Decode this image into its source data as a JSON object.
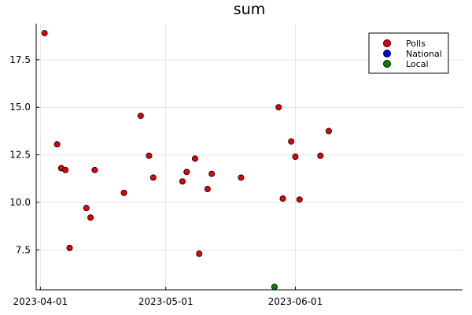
{
  "chart_data": {
    "type": "scatter",
    "title": "sum",
    "xlabel": "",
    "ylabel": "",
    "x_axis": {
      "type": "date",
      "range": [
        "2023-03-31",
        "2023-07-11"
      ],
      "ticks": [
        {
          "date": "2023-04-01",
          "label": "2023-04-01"
        },
        {
          "date": "2023-05-01",
          "label": "2023-05-01"
        },
        {
          "date": "2023-06-01",
          "label": "2023-06-01"
        }
      ]
    },
    "y_axis": {
      "range": [
        5.4,
        19.4
      ],
      "ticks": [
        {
          "value": 7.5,
          "label": "7.5"
        },
        {
          "value": 10.0,
          "label": "10.0"
        },
        {
          "value": 12.5,
          "label": "12.5"
        },
        {
          "value": 15.0,
          "label": "15.0"
        },
        {
          "value": 17.5,
          "label": "17.5"
        }
      ]
    },
    "grid": true,
    "legend_position": "top-right",
    "series": [
      {
        "name": "Polls",
        "color": "#e0000a",
        "points": [
          {
            "x": "2023-04-02",
            "y": 18.9
          },
          {
            "x": "2023-04-05",
            "y": 13.05
          },
          {
            "x": "2023-04-06",
            "y": 11.8
          },
          {
            "x": "2023-04-07",
            "y": 11.7
          },
          {
            "x": "2023-04-08",
            "y": 7.6
          },
          {
            "x": "2023-04-12",
            "y": 9.7
          },
          {
            "x": "2023-04-13",
            "y": 9.2
          },
          {
            "x": "2023-04-14",
            "y": 11.7
          },
          {
            "x": "2023-04-21",
            "y": 10.5
          },
          {
            "x": "2023-04-25",
            "y": 14.55
          },
          {
            "x": "2023-04-27",
            "y": 12.45
          },
          {
            "x": "2023-04-28",
            "y": 11.3
          },
          {
            "x": "2023-05-05",
            "y": 11.1
          },
          {
            "x": "2023-05-06",
            "y": 11.6
          },
          {
            "x": "2023-05-08",
            "y": 12.3
          },
          {
            "x": "2023-05-09",
            "y": 7.3
          },
          {
            "x": "2023-05-11",
            "y": 10.7
          },
          {
            "x": "2023-05-12",
            "y": 11.5
          },
          {
            "x": "2023-05-19",
            "y": 11.3
          },
          {
            "x": "2023-05-28",
            "y": 15.0
          },
          {
            "x": "2023-05-29",
            "y": 10.2
          },
          {
            "x": "2023-05-31",
            "y": 13.2
          },
          {
            "x": "2023-06-01",
            "y": 12.4
          },
          {
            "x": "2023-06-02",
            "y": 10.15
          },
          {
            "x": "2023-06-07",
            "y": 12.45
          },
          {
            "x": "2023-06-09",
            "y": 13.75
          }
        ]
      },
      {
        "name": "National",
        "color": "#0000ee",
        "points": []
      },
      {
        "name": "Local",
        "color": "#008000",
        "points": [
          {
            "x": "2023-05-27",
            "y": 5.55
          }
        ]
      }
    ]
  }
}
